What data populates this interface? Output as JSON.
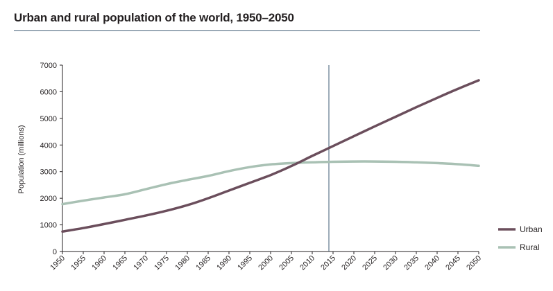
{
  "chart_data": {
    "type": "line",
    "title": "Urban and rural population of the world, 1950–2050",
    "xlabel": "",
    "ylabel": "Population (millions)",
    "xlim": [
      1950,
      2050
    ],
    "ylim": [
      0,
      7000
    ],
    "x_ticks": [
      "1950",
      "1955",
      "1960",
      "1965",
      "1970",
      "1975",
      "1980",
      "1985",
      "1990",
      "1995",
      "2000",
      "2005",
      "2010",
      "2015",
      "2020",
      "2025",
      "2030",
      "2035",
      "2040",
      "2045",
      "2050"
    ],
    "y_ticks": [
      "0",
      "1000",
      "2000",
      "3000",
      "4000",
      "5000",
      "6000",
      "7000"
    ],
    "x": [
      1950,
      1955,
      1960,
      1965,
      1970,
      1975,
      1980,
      1985,
      1990,
      1995,
      2000,
      2005,
      2010,
      2015,
      2020,
      2025,
      2030,
      2035,
      2040,
      2045,
      2050
    ],
    "series": [
      {
        "name": "Urban",
        "color": "#6b4e5c",
        "values": [
          750,
          880,
          1030,
          1190,
          1350,
          1530,
          1740,
          2000,
          2290,
          2580,
          2870,
          3210,
          3590,
          3960,
          4330,
          4700,
          5060,
          5420,
          5770,
          6110,
          6430
        ]
      },
      {
        "name": "Rural",
        "color": "#a9c1b4",
        "values": [
          1780,
          1910,
          2030,
          2150,
          2340,
          2530,
          2690,
          2840,
          3020,
          3170,
          3270,
          3320,
          3350,
          3370,
          3380,
          3380,
          3370,
          3350,
          3320,
          3280,
          3220
        ]
      }
    ],
    "vertical_marker_x": 2014,
    "grid": false,
    "legend_position": "bottom-right"
  }
}
